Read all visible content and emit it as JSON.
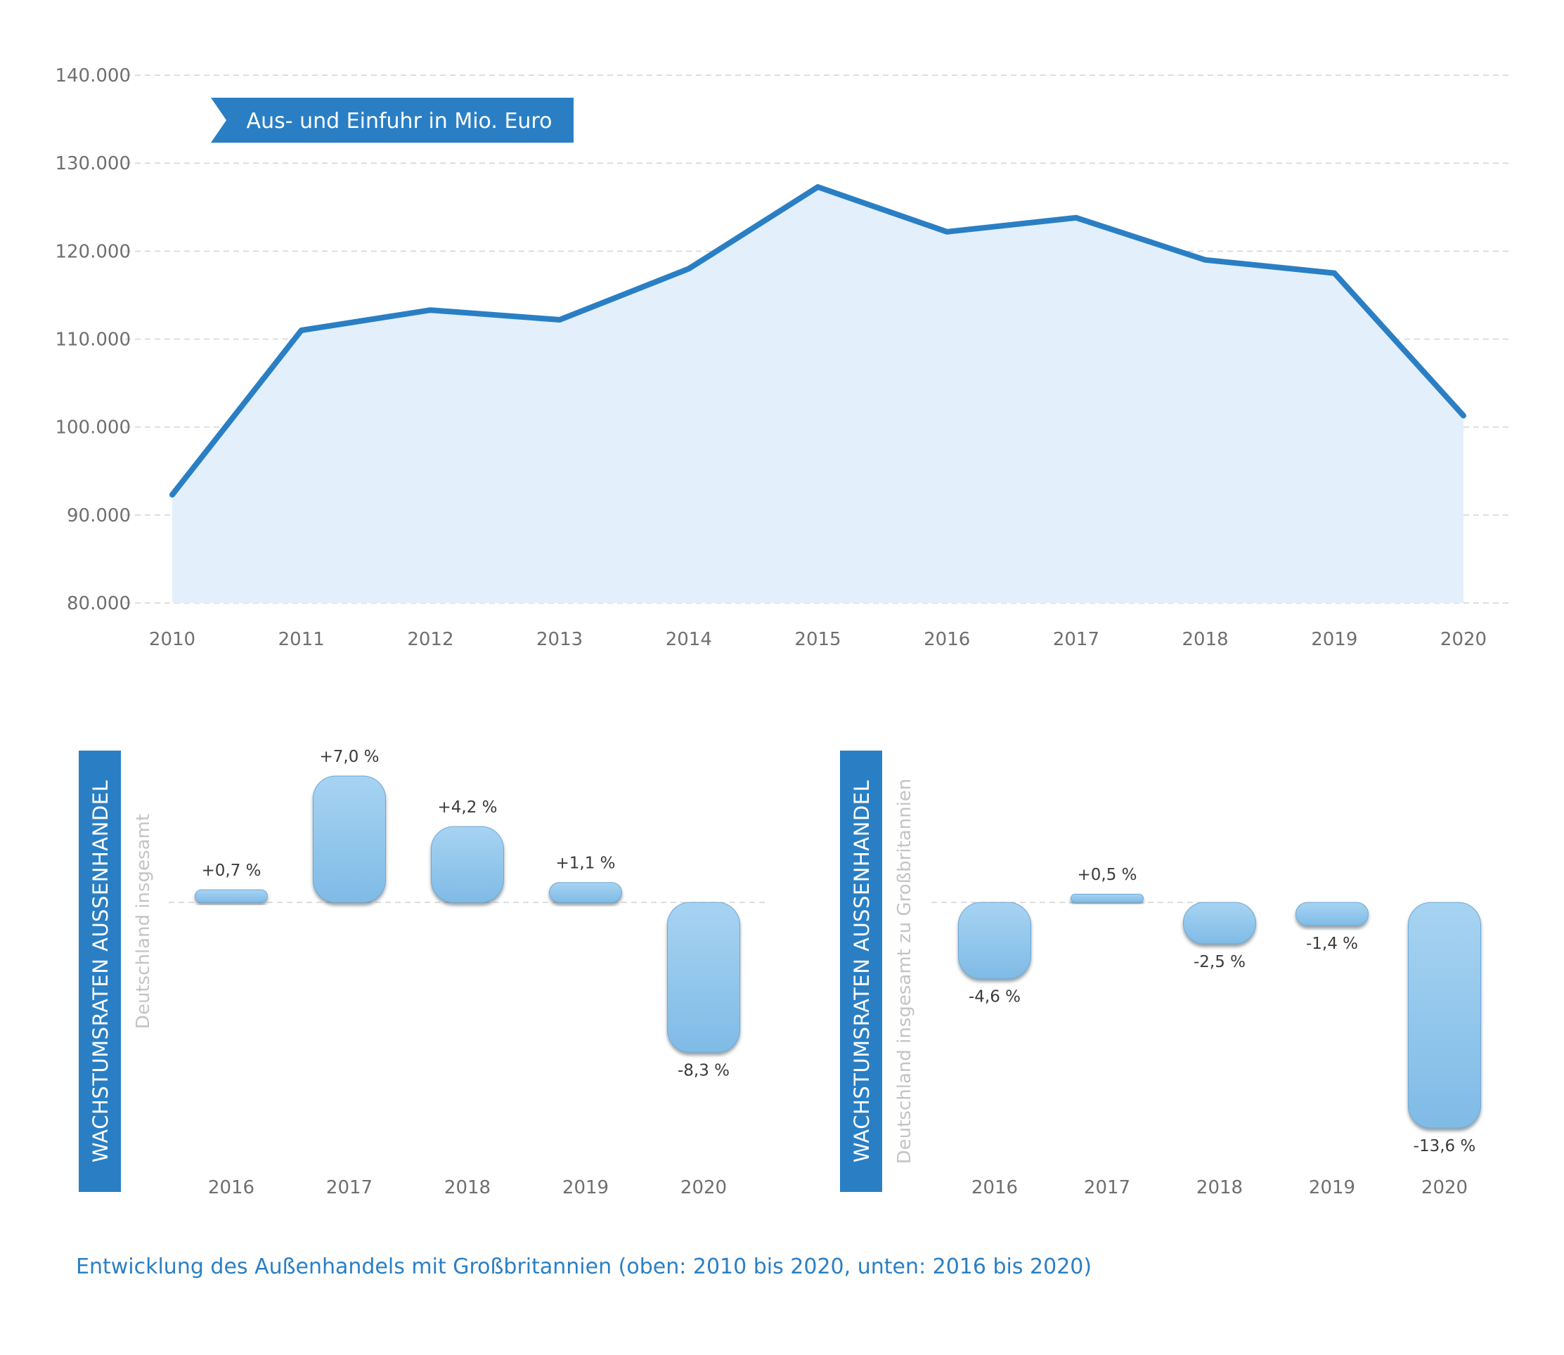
{
  "colors": {
    "line": "#2a7fc4",
    "area": "#e3effa",
    "bar": "#8cc4ec",
    "sidebar": "#2a7fc4",
    "grid": "#d4d4d4",
    "caption": "#2a7fc4"
  },
  "chart_data": [
    {
      "type": "area",
      "legend": "Aus- und Einfuhr in Mio. Euro",
      "x": [
        "2010",
        "2011",
        "2012",
        "2013",
        "2014",
        "2015",
        "2016",
        "2017",
        "2018",
        "2019",
        "2020"
      ],
      "values": [
        92300,
        111000,
        113300,
        112200,
        118000,
        127300,
        122200,
        123800,
        119000,
        117500,
        101300
      ],
      "ylim": [
        80000,
        140000
      ],
      "yticks": [
        {
          "value": 80000,
          "label": "80.000"
        },
        {
          "value": 90000,
          "label": "90.000"
        },
        {
          "value": 100000,
          "label": "100.000"
        },
        {
          "value": 110000,
          "label": "110.000"
        },
        {
          "value": 120000,
          "label": "120.000"
        },
        {
          "value": 130000,
          "label": "130.000"
        },
        {
          "value": 140000,
          "label": "140.000"
        }
      ],
      "grid": true
    },
    {
      "type": "bar",
      "title": "WACHSTUMSRATEN AUSSENHANDEL",
      "subtitle": "Deutschland insgesamt",
      "categories": [
        "2016",
        "2017",
        "2018",
        "2019",
        "2020"
      ],
      "values": [
        0.7,
        7.0,
        4.2,
        1.1,
        -8.3
      ],
      "labels": [
        "+0,7 %",
        "+7,0 %",
        "+4,2 %",
        "+1,1 %",
        "-8,3 %"
      ]
    },
    {
      "type": "bar",
      "title": "WACHSTUMSRATEN AUSSENHANDEL",
      "subtitle": "Deutschland insgesamt zu Großbritannien",
      "categories": [
        "2016",
        "2017",
        "2018",
        "2019",
        "2020"
      ],
      "values": [
        -4.6,
        0.5,
        -2.5,
        -1.4,
        -13.6
      ],
      "labels": [
        "-4,6 %",
        "+0,5 %",
        "-2,5 %",
        "-1,4 %",
        "-13,6 %"
      ]
    }
  ],
  "caption": "Entwicklung des Außenhandels mit Großbritannien (oben: 2010 bis 2020, unten: 2016 bis 2020)"
}
